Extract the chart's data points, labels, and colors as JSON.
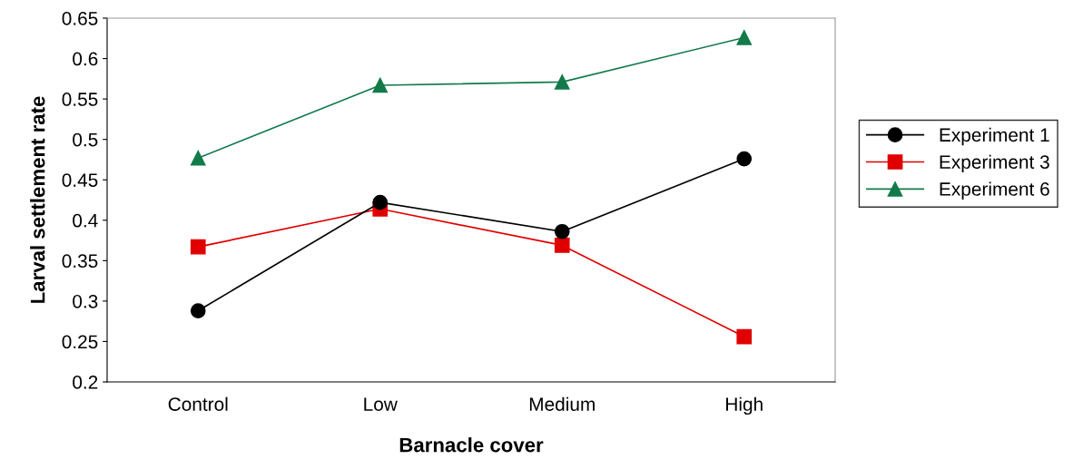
{
  "chart_data": {
    "type": "line",
    "xlabel": "Barnacle cover",
    "ylabel": "Larval settlement rate",
    "categories": [
      "Control",
      "Low",
      "Medium",
      "High"
    ],
    "ylim": [
      0.2,
      0.65
    ],
    "yticks": [
      0.2,
      0.25,
      0.3,
      0.35,
      0.4,
      0.45,
      0.5,
      0.55,
      0.6,
      0.65
    ],
    "grid": false,
    "legend": "right",
    "line_style": "solid",
    "series": [
      {
        "name": "Experiment 1",
        "color": "#000000",
        "marker": "circle",
        "values": [
          0.288,
          0.422,
          0.386,
          0.476
        ]
      },
      {
        "name": "Experiment 3",
        "color": "#e00000",
        "marker": "square",
        "values": [
          0.367,
          0.414,
          0.369,
          0.256
        ]
      },
      {
        "name": "Experiment 6",
        "color": "#137a4a",
        "marker": "triangle",
        "values": [
          0.477,
          0.567,
          0.571,
          0.626
        ]
      }
    ]
  }
}
